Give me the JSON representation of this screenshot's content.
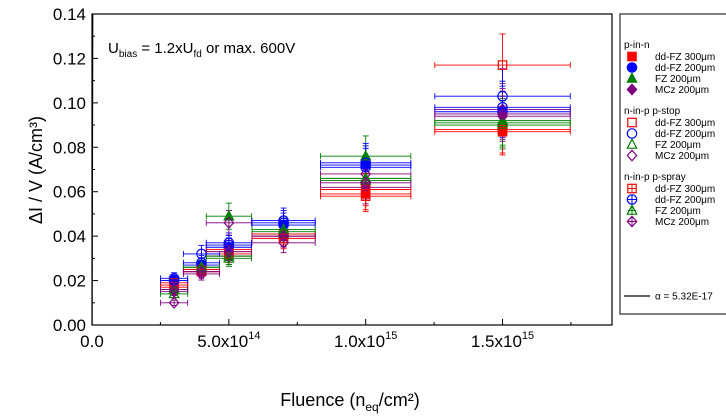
{
  "chart_data": {
    "type": "scatter",
    "annotation": {
      "text_main": "U",
      "sub1": "bias",
      "text_mid": " = 1.2xU",
      "sub2": "fd",
      "text_end": " or max. 600V"
    },
    "xlabel": {
      "main": "Fluence (n",
      "sub": "eq",
      "end": "/cm²)"
    },
    "ylabel": "ΔI / V (A/cm³)",
    "xlim": [
      0,
      1900000000000000.0
    ],
    "ylim": [
      0,
      0.14
    ],
    "x_ticks": [
      {
        "value": 0,
        "label": "0.0",
        "exp": ""
      },
      {
        "value": 500000000000000.0,
        "label": "5.0x10",
        "exp": "14"
      },
      {
        "value": 1000000000000000.0,
        "label": "1.0x10",
        "exp": "15"
      },
      {
        "value": 1500000000000000.0,
        "label": "1.5x10",
        "exp": "15"
      }
    ],
    "y_ticks": [
      "0.00",
      "0.02",
      "0.04",
      "0.06",
      "0.08",
      "0.10",
      "0.12",
      "0.14"
    ],
    "legend": {
      "groups": [
        {
          "title": "p-in-n",
          "entries": [
            {
              "label": "dd-FZ 300μm",
              "marker": "square-filled",
              "color": "#ff0000"
            },
            {
              "label": "dd-FZ 200μm",
              "marker": "circle-filled",
              "color": "#0000ff"
            },
            {
              "label": "FZ 200μm",
              "marker": "triangle-filled",
              "color": "#008000"
            },
            {
              "label": "MCz 200μm",
              "marker": "diamond-filled",
              "color": "#800080"
            }
          ]
        },
        {
          "title": "n-in-p p-stop",
          "entries": [
            {
              "label": "dd-FZ 300μm",
              "marker": "square-open",
              "color": "#ff0000"
            },
            {
              "label": "dd-FZ 200μm",
              "marker": "circle-open",
              "color": "#0000ff"
            },
            {
              "label": "FZ 200μm",
              "marker": "triangle-open",
              "color": "#008000"
            },
            {
              "label": "MCz 200μm",
              "marker": "diamond-open",
              "color": "#800080"
            }
          ]
        },
        {
          "title": "n-in-p p-spray",
          "entries": [
            {
              "label": "dd-FZ 300μm",
              "marker": "square-cross",
              "color": "#ff0000"
            },
            {
              "label": "dd-FZ 200μm",
              "marker": "circle-cross",
              "color": "#0000ff"
            },
            {
              "label": "FZ 200μm",
              "marker": "triangle-cross",
              "color": "#008000"
            },
            {
              "label": "MCz 200μm",
              "marker": "diamond-cross",
              "color": "#800080"
            }
          ]
        }
      ],
      "fit_label": "α = 5.32E-17"
    },
    "fit": {
      "alpha": 5.32e-17
    },
    "colors": {
      "red": "#ff0000",
      "blue": "#0000ff",
      "green": "#008000",
      "purple": "#800080"
    },
    "series": [
      {
        "name": "p-in-n dd-FZ 300μm",
        "marker": "square-filled",
        "color": "#ff0000",
        "points": [
          {
            "x": 300000000000000.0,
            "y": 0.017
          },
          {
            "x": 400000000000000.0,
            "y": 0.024
          },
          {
            "x": 500000000000000.0,
            "y": 0.033
          },
          {
            "x": 700000000000000.0,
            "y": 0.04
          },
          {
            "x": 1000000000000000.0,
            "y": 0.059
          },
          {
            "x": 1500000000000000.0,
            "y": 0.087
          }
        ]
      },
      {
        "name": "p-in-n dd-FZ 200μm",
        "marker": "circle-filled",
        "color": "#0000ff",
        "points": [
          {
            "x": 300000000000000.0,
            "y": 0.02
          },
          {
            "x": 400000000000000.0,
            "y": 0.027
          },
          {
            "x": 500000000000000.0,
            "y": 0.035
          },
          {
            "x": 700000000000000.0,
            "y": 0.045
          },
          {
            "x": 1000000000000000.0,
            "y": 0.072
          },
          {
            "x": 1500000000000000.0,
            "y": 0.096
          }
        ]
      },
      {
        "name": "p-in-n FZ 200μm",
        "marker": "triangle-filled",
        "color": "#008000",
        "points": [
          {
            "x": 300000000000000.0,
            "y": 0.016
          },
          {
            "x": 400000000000000.0,
            "y": 0.026
          },
          {
            "x": 500000000000000.0,
            "y": 0.049
          },
          {
            "x": 700000000000000.0,
            "y": 0.042
          },
          {
            "x": 1000000000000000.0,
            "y": 0.076
          },
          {
            "x": 1500000000000000.0,
            "y": 0.092
          }
        ]
      },
      {
        "name": "p-in-n MCz 200μm",
        "marker": "diamond-filled",
        "color": "#800080",
        "points": [
          {
            "x": 300000000000000.0,
            "y": 0.015
          },
          {
            "x": 400000000000000.0,
            "y": 0.024
          },
          {
            "x": 500000000000000.0,
            "y": 0.031
          },
          {
            "x": 700000000000000.0,
            "y": 0.04
          },
          {
            "x": 1000000000000000.0,
            "y": 0.062
          },
          {
            "x": 1500000000000000.0,
            "y": 0.094
          }
        ]
      },
      {
        "name": "n-in-p p-stop dd-FZ 300μm",
        "marker": "square-open",
        "color": "#ff0000",
        "points": [
          {
            "x": 300000000000000.0,
            "y": 0.018
          },
          {
            "x": 400000000000000.0,
            "y": 0.024
          },
          {
            "x": 500000000000000.0,
            "y": 0.032
          },
          {
            "x": 700000000000000.0,
            "y": 0.039
          },
          {
            "x": 1000000000000000.0,
            "y": 0.058
          },
          {
            "x": 1500000000000000.0,
            "y": 0.117
          }
        ]
      },
      {
        "name": "n-in-p p-stop dd-FZ 200μm",
        "marker": "circle-open",
        "color": "#0000ff",
        "points": [
          {
            "x": 300000000000000.0,
            "y": 0.021
          },
          {
            "x": 400000000000000.0,
            "y": 0.032
          },
          {
            "x": 500000000000000.0,
            "y": 0.037
          },
          {
            "x": 700000000000000.0,
            "y": 0.047
          },
          {
            "x": 1000000000000000.0,
            "y": 0.073
          },
          {
            "x": 1500000000000000.0,
            "y": 0.103
          }
        ]
      },
      {
        "name": "n-in-p p-stop FZ 200μm",
        "marker": "triangle-open",
        "color": "#008000",
        "points": [
          {
            "x": 300000000000000.0,
            "y": 0.014
          },
          {
            "x": 400000000000000.0,
            "y": 0.025
          },
          {
            "x": 500000000000000.0,
            "y": 0.03
          },
          {
            "x": 700000000000000.0,
            "y": 0.041
          },
          {
            "x": 1000000000000000.0,
            "y": 0.065
          },
          {
            "x": 1500000000000000.0,
            "y": 0.09
          }
        ]
      },
      {
        "name": "n-in-p p-stop MCz 200μm",
        "marker": "diamond-open",
        "color": "#800080",
        "points": [
          {
            "x": 300000000000000.0,
            "y": 0.01
          },
          {
            "x": 400000000000000.0,
            "y": 0.023
          },
          {
            "x": 500000000000000.0,
            "y": 0.046
          },
          {
            "x": 700000000000000.0,
            "y": 0.037
          },
          {
            "x": 1000000000000000.0,
            "y": 0.068
          },
          {
            "x": 1500000000000000.0,
            "y": 0.097
          }
        ]
      },
      {
        "name": "n-in-p p-spray dd-FZ 300μm",
        "marker": "square-cross",
        "color": "#ff0000",
        "points": [
          {
            "x": 300000000000000.0,
            "y": 0.019
          },
          {
            "x": 400000000000000.0,
            "y": 0.025
          },
          {
            "x": 500000000000000.0,
            "y": 0.034
          },
          {
            "x": 700000000000000.0,
            "y": 0.041
          },
          {
            "x": 1000000000000000.0,
            "y": 0.061
          },
          {
            "x": 1500000000000000.0,
            "y": 0.088
          }
        ]
      },
      {
        "name": "n-in-p p-spray dd-FZ 200μm",
        "marker": "circle-cross",
        "color": "#0000ff",
        "points": [
          {
            "x": 300000000000000.0,
            "y": 0.02
          },
          {
            "x": 400000000000000.0,
            "y": 0.028
          },
          {
            "x": 500000000000000.0,
            "y": 0.036
          },
          {
            "x": 700000000000000.0,
            "y": 0.046
          },
          {
            "x": 1000000000000000.0,
            "y": 0.071
          },
          {
            "x": 1500000000000000.0,
            "y": 0.098
          }
        ]
      },
      {
        "name": "n-in-p p-spray FZ 200μm",
        "marker": "triangle-cross",
        "color": "#008000",
        "points": [
          {
            "x": 300000000000000.0,
            "y": 0.016
          },
          {
            "x": 400000000000000.0,
            "y": 0.026
          },
          {
            "x": 500000000000000.0,
            "y": 0.031
          },
          {
            "x": 700000000000000.0,
            "y": 0.043
          },
          {
            "x": 1000000000000000.0,
            "y": 0.066
          },
          {
            "x": 1500000000000000.0,
            "y": 0.091
          }
        ]
      },
      {
        "name": "n-in-p p-spray MCz 200μm",
        "marker": "diamond-cross",
        "color": "#800080",
        "points": [
          {
            "x": 300000000000000.0,
            "y": 0.016
          },
          {
            "x": 400000000000000.0,
            "y": 0.024
          },
          {
            "x": 500000000000000.0,
            "y": 0.033
          },
          {
            "x": 700000000000000.0,
            "y": 0.04
          },
          {
            "x": 1000000000000000.0,
            "y": 0.064
          },
          {
            "x": 1500000000000000.0,
            "y": 0.095
          }
        ]
      }
    ]
  }
}
